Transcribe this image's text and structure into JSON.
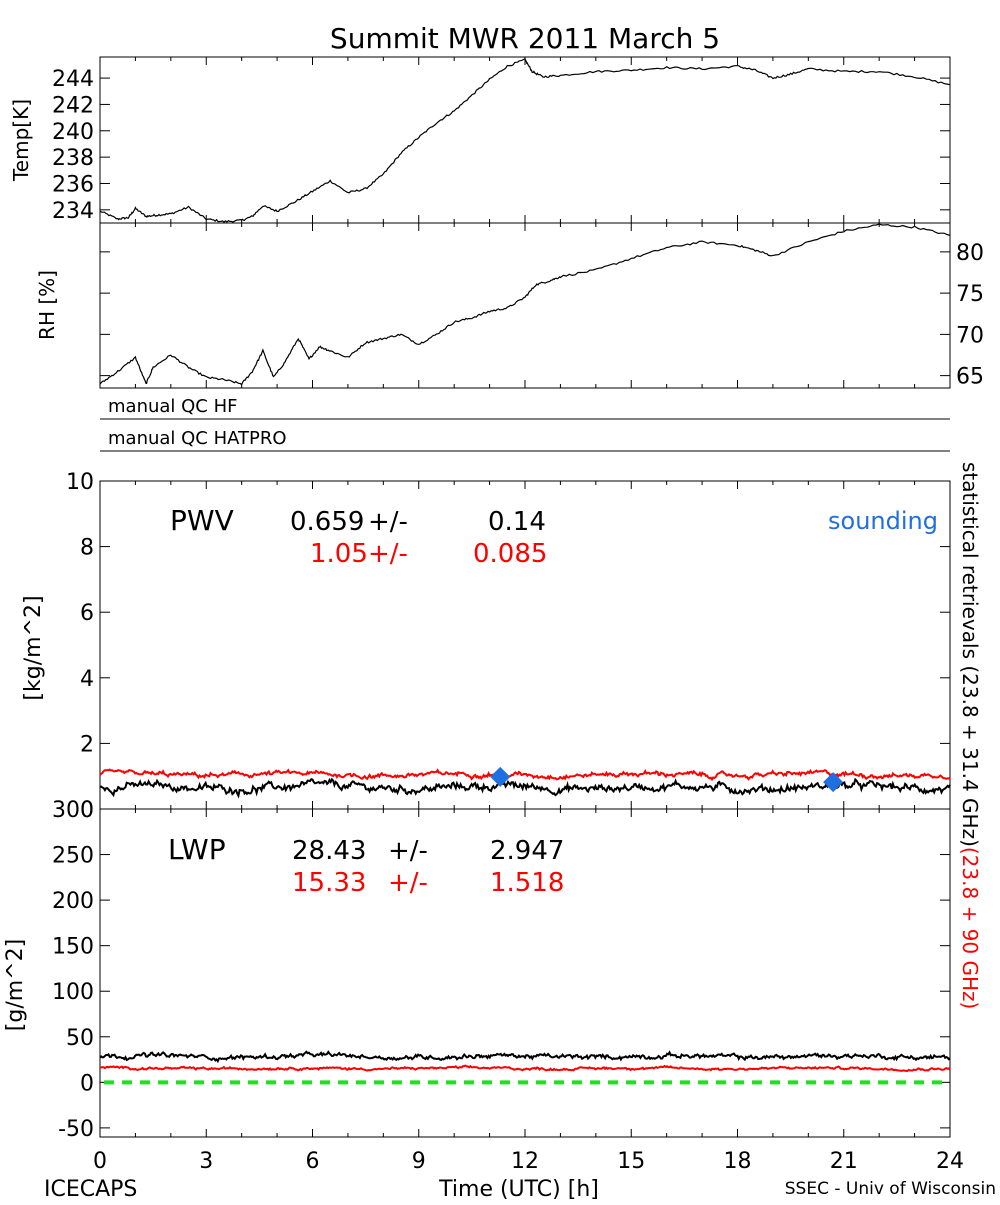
{
  "title": "Summit MWR 2011 March  5",
  "footer": {
    "left": "ICECAPS",
    "center": "Time (UTC) [h]",
    "right": "SSEC - Univ of Wisconsin"
  },
  "qc_rows": [
    "manual QC HF",
    "manual QC HATPRO"
  ],
  "right_side_label": {
    "black": "statistical retrievals (23.8 + 31.4 GHz)",
    "red": "(23.8 + 90 GHz)"
  },
  "colors": {
    "black_series": "#000000",
    "red_series": "#ff0000",
    "sounding": "#1f6fe0",
    "zero_line": "#22dd22"
  },
  "x_ticks": [
    "0",
    "3",
    "6",
    "9",
    "12",
    "15",
    "18",
    "21",
    "24"
  ],
  "chart_data": [
    {
      "type": "line",
      "panel": "temperature",
      "ylabel": "Temp[K]",
      "xlim": [
        0,
        24
      ],
      "ylim": [
        233,
        245.6
      ],
      "y_ticks": [
        234,
        236,
        238,
        240,
        242,
        244
      ],
      "series": [
        {
          "color": "#000000",
          "x": [
            0,
            0.5,
            0.8,
            1.0,
            1.3,
            1.6,
            2.0,
            2.5,
            3.0,
            3.5,
            4.0,
            4.3,
            4.6,
            5.0,
            5.5,
            6.0,
            6.5,
            7.0,
            7.5,
            8.0,
            8.5,
            9.0,
            9.5,
            10.0,
            10.5,
            11.0,
            11.5,
            12.0,
            12.2,
            12.5,
            13.0,
            14.0,
            15.0,
            16.0,
            17.0,
            18.0,
            18.5,
            19.0,
            19.5,
            20.0,
            21.0,
            22.0,
            23.0,
            24.0
          ],
          "y": [
            233.9,
            233.3,
            233.4,
            234.1,
            233.5,
            233.6,
            233.7,
            234.2,
            233.3,
            233.1,
            233.2,
            233.5,
            234.3,
            233.9,
            234.6,
            235.4,
            236.2,
            235.3,
            235.6,
            236.7,
            238.3,
            239.5,
            240.6,
            241.5,
            242.7,
            243.9,
            244.9,
            245.4,
            244.5,
            244.1,
            244.2,
            244.5,
            244.6,
            244.8,
            244.7,
            244.9,
            244.6,
            244.0,
            244.3,
            244.7,
            244.5,
            244.5,
            244.1,
            243.5
          ]
        }
      ]
    },
    {
      "type": "line",
      "panel": "relative_humidity",
      "ylabel": "RH [%]",
      "xlim": [
        0,
        24
      ],
      "ylim": [
        63.5,
        83.5
      ],
      "y_ticks": [
        65,
        70,
        75,
        80
      ],
      "series": [
        {
          "color": "#000000",
          "x": [
            0,
            0.5,
            1.0,
            1.3,
            1.5,
            2.0,
            2.5,
            3.0,
            3.5,
            4.0,
            4.3,
            4.6,
            4.9,
            5.2,
            5.6,
            5.9,
            6.2,
            6.5,
            7.0,
            7.5,
            8.0,
            8.5,
            9.0,
            9.5,
            10.0,
            10.5,
            11.0,
            11.5,
            12.0,
            12.3,
            12.7,
            13.0,
            14.0,
            15.0,
            16.0,
            17.0,
            18.0,
            18.5,
            19.0,
            20.0,
            21.0,
            22.0,
            23.0,
            24.0
          ],
          "y": [
            64.0,
            65.5,
            67.2,
            64.0,
            66.0,
            67.5,
            66.0,
            64.8,
            64.5,
            64.0,
            65.5,
            68.0,
            64.8,
            66.5,
            69.5,
            67.0,
            68.5,
            68.0,
            67.2,
            69.0,
            69.5,
            70.0,
            68.8,
            70.0,
            71.5,
            72.0,
            72.8,
            73.2,
            74.5,
            76.0,
            76.5,
            77.0,
            77.8,
            79.2,
            80.5,
            81.2,
            80.8,
            80.2,
            79.5,
            81.2,
            82.5,
            83.3,
            83.0,
            82.0
          ]
        }
      ]
    },
    {
      "type": "line",
      "panel": "pwv",
      "label": "PWV",
      "ylabel": "[kg/m^2]",
      "xlim": [
        0,
        24
      ],
      "ylim": [
        0,
        10
      ],
      "y_ticks": [
        0,
        2,
        4,
        6,
        8,
        10
      ],
      "stats": [
        {
          "mean": "0.659",
          "sep": "+/-",
          "err": "0.14",
          "color": "#000000"
        },
        {
          "mean": "1.05",
          "sep": "+/-",
          "err": "0.085",
          "color": "#ff0000"
        }
      ],
      "sounding_label": "sounding",
      "sounding_points": [
        {
          "x": 11.3,
          "y": 0.98
        },
        {
          "x": 20.7,
          "y": 0.82
        }
      ],
      "series": [
        {
          "color": "#000000",
          "mean": 0.659,
          "noise": 0.14
        },
        {
          "color": "#ff0000",
          "mean": 1.05,
          "noise": 0.085
        }
      ]
    },
    {
      "type": "line",
      "panel": "lwp",
      "label": "LWP",
      "ylabel": "[g/m^2]",
      "xlim": [
        0,
        24
      ],
      "ylim": [
        -60,
        300
      ],
      "y_ticks": [
        -50,
        0,
        50,
        100,
        150,
        200,
        250,
        300
      ],
      "stats": [
        {
          "mean": "28.43",
          "sep": "+/-",
          "err": "2.947",
          "color": "#000000"
        },
        {
          "mean": "15.33",
          "sep": "+/-",
          "err": "1.518",
          "color": "#ff0000"
        }
      ],
      "zero_line": 0,
      "series": [
        {
          "color": "#000000",
          "mean": 28.43,
          "noise": 2.947
        },
        {
          "color": "#ff0000",
          "mean": 15.33,
          "noise": 1.518
        }
      ]
    }
  ]
}
